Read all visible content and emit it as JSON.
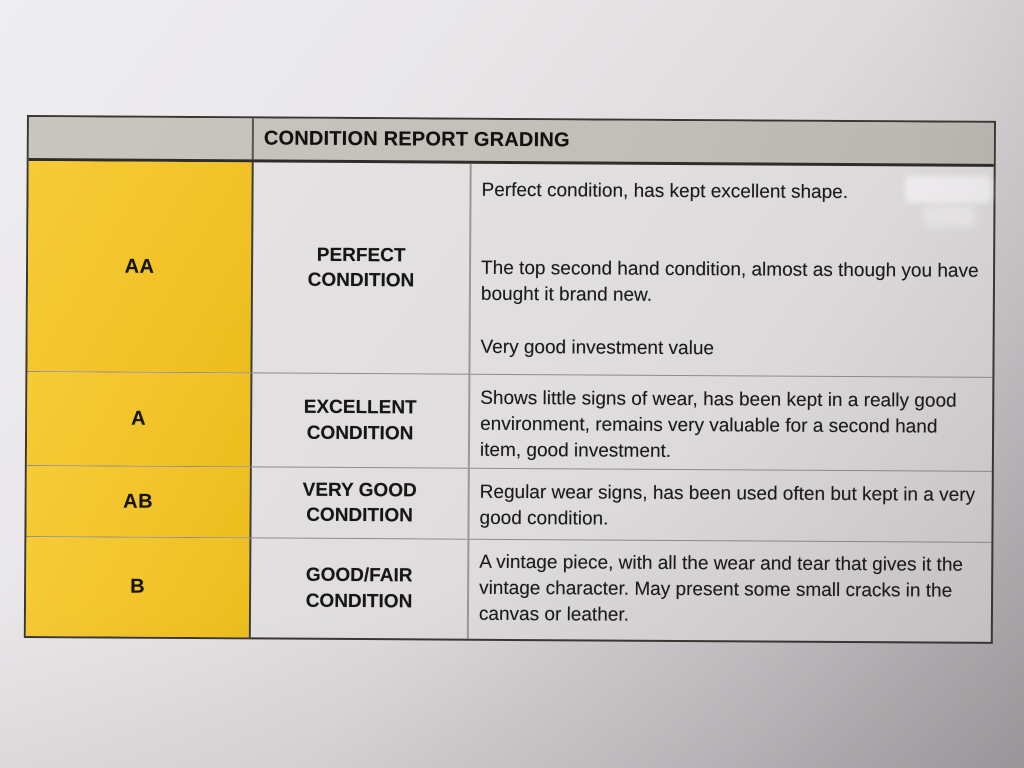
{
  "table": {
    "title": "CONDITION REPORT GRADING",
    "rows": [
      {
        "grade": "AA",
        "condition": "PERFECT CONDITION",
        "description": [
          "Perfect condition, has kept excellent shape.",
          "The top second hand condition, almost as though you have bought it brand new.",
          "Very good investment value"
        ]
      },
      {
        "grade": "A",
        "condition": "EXCELLENT CONDITION",
        "description": [
          "Shows little signs of wear, has been kept in a really good environment, remains very valuable for a second hand item, good investment."
        ]
      },
      {
        "grade": "AB",
        "condition": "VERY GOOD CONDITION",
        "description": [
          "Regular wear signs, has been used often but kept in a very good condition."
        ]
      },
      {
        "grade": "B",
        "condition": "GOOD/FAIR CONDITION",
        "description": [
          "A vintage piece, with all the wear and tear that gives it the vintage character. May present some small cracks in the canvas or leather."
        ]
      }
    ],
    "colors": {
      "grade_cell_yellow": "#F2C42A",
      "header_gray": "#C2BEB8",
      "border_dark": "#3A3733",
      "paper_light": "#E9E7E9",
      "paper_shadow": "#A9A5A8"
    }
  }
}
